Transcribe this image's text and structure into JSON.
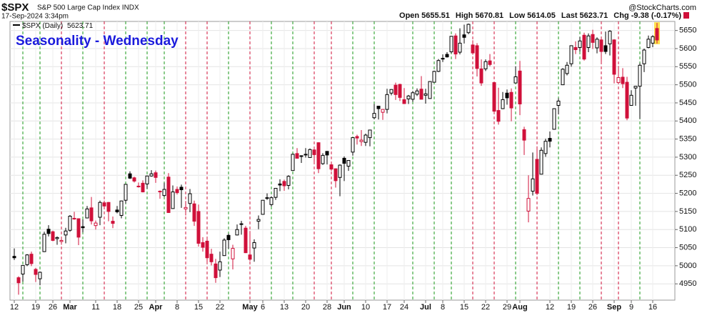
{
  "chart_data": {
    "type": "candlestick",
    "symbol": "$SPX",
    "description": "S&P 500 Large Cap Index INDX",
    "timestamp": "17-Sep-2024 3:34pm",
    "watermark": "@StockCharts.com",
    "legend_label": "$SPX (Daily)",
    "title": "Seasonality - Wednesday",
    "quote_labels": [
      "Open",
      "High",
      "Low",
      "Last",
      "Chg"
    ],
    "change": "-9.38 (-0.17%)",
    "up_color": "#000000",
    "down_color": "#d0103a",
    "wednesday_up_color": "#1a9a1a",
    "wednesday_down_color": "#d0103a",
    "grid": true,
    "ylim": [
      4905,
      5675
    ],
    "yticks": [
      4950,
      5000,
      5050,
      5100,
      5150,
      5200,
      5250,
      5300,
      5350,
      5400,
      5450,
      5500,
      5550,
      5600,
      5650
    ],
    "xticks": [
      {
        "value": 0,
        "label": "12"
      },
      {
        "value": 5,
        "label": "19"
      },
      {
        "value": 9,
        "label": "26"
      },
      {
        "value": 13,
        "label": "Mar"
      },
      {
        "value": 19,
        "label": "11"
      },
      {
        "value": 24,
        "label": "18"
      },
      {
        "value": 29,
        "label": "25"
      },
      {
        "value": 33,
        "label": "Apr"
      },
      {
        "value": 38,
        "label": "8"
      },
      {
        "value": 43,
        "label": "15"
      },
      {
        "value": 48,
        "label": "22"
      },
      {
        "value": 55,
        "label": "May"
      },
      {
        "value": 58,
        "label": "6"
      },
      {
        "value": 63,
        "label": "13"
      },
      {
        "value": 68,
        "label": "20"
      },
      {
        "value": 73,
        "label": "28"
      },
      {
        "value": 77,
        "label": "Jun"
      },
      {
        "value": 82,
        "label": "10"
      },
      {
        "value": 87,
        "label": "17"
      },
      {
        "value": 91,
        "label": "24"
      },
      {
        "value": 96,
        "label": "Jul"
      },
      {
        "value": 100,
        "label": "8"
      },
      {
        "value": 105,
        "label": "15"
      },
      {
        "value": 110,
        "label": "22"
      },
      {
        "value": 115,
        "label": "29"
      },
      {
        "value": 118,
        "label": "Aug"
      },
      {
        "value": 125,
        "label": "12"
      },
      {
        "value": 130,
        "label": "19"
      },
      {
        "value": 135,
        "label": "26"
      },
      {
        "value": 140,
        "label": "Sep"
      },
      {
        "value": 144,
        "label": "9"
      },
      {
        "value": 149,
        "label": "16"
      }
    ],
    "month_labels": [
      "Mar",
      "Apr",
      "May",
      "Jun",
      "Jul",
      "Aug",
      "Sep"
    ],
    "wednesdays": [
      2,
      6,
      11,
      16,
      21,
      26,
      31,
      35,
      40,
      45,
      50,
      55,
      60,
      65,
      70,
      74,
      79,
      84,
      93,
      98,
      102,
      107,
      112,
      117,
      122,
      127,
      132,
      137,
      141,
      146
    ],
    "ohlc": [
      [
        5026,
        5048,
        5016,
        5022
      ],
      [
        4967,
        4971,
        4920,
        4953
      ],
      [
        4977,
        5002,
        4956,
        5001
      ],
      [
        5003,
        5032,
        4999,
        5030
      ],
      [
        5032,
        5039,
        4999,
        5006
      ],
      [
        4990,
        4994,
        4955,
        4976
      ],
      [
        4964,
        4984,
        4946,
        4982
      ],
      [
        5039,
        5094,
        5038,
        5087
      ],
      [
        5101,
        5112,
        5081,
        5089
      ],
      [
        5094,
        5097,
        5068,
        5070
      ],
      [
        5075,
        5081,
        5058,
        5078
      ],
      [
        5067,
        5077,
        5058,
        5070
      ],
      [
        5085,
        5105,
        5062,
        5096
      ],
      [
        5098,
        5140,
        5094,
        5137
      ],
      [
        5131,
        5149,
        5127,
        5131
      ],
      [
        5130,
        5131,
        5057,
        5079
      ],
      [
        5108,
        5128,
        5092,
        5105
      ],
      [
        5132,
        5165,
        5132,
        5157
      ],
      [
        5160,
        5190,
        5114,
        5124
      ],
      [
        5111,
        5125,
        5100,
        5118
      ],
      [
        5134,
        5180,
        5112,
        5175
      ],
      [
        5174,
        5180,
        5161,
        5165
      ],
      [
        5175,
        5176,
        5123,
        5150
      ],
      [
        5123,
        5136,
        5104,
        5117
      ],
      [
        5154,
        5165,
        5145,
        5149
      ],
      [
        5139,
        5180,
        5131,
        5179
      ],
      [
        5181,
        5225,
        5172,
        5225
      ],
      [
        5254,
        5261,
        5240,
        5242
      ],
      [
        5243,
        5246,
        5230,
        5234
      ],
      [
        5220,
        5230,
        5216,
        5218
      ],
      [
        5228,
        5236,
        5203,
        5204
      ],
      [
        5226,
        5249,
        5213,
        5248
      ],
      [
        5248,
        5264,
        5246,
        5254
      ],
      [
        5257,
        5263,
        5229,
        5244
      ],
      [
        5204,
        5208,
        5185,
        5206
      ],
      [
        5194,
        5229,
        5190,
        5211
      ],
      [
        5245,
        5256,
        5146,
        5147
      ],
      [
        5158,
        5222,
        5158,
        5204
      ],
      [
        5211,
        5219,
        5197,
        5202
      ],
      [
        5217,
        5224,
        5160,
        5210
      ],
      [
        5157,
        5179,
        5139,
        5161
      ],
      [
        5172,
        5212,
        5148,
        5199
      ],
      [
        5171,
        5180,
        5110,
        5123
      ],
      [
        5150,
        5169,
        5053,
        5062
      ],
      [
        5064,
        5079,
        5039,
        5051
      ],
      [
        5068,
        5077,
        5008,
        5022
      ],
      [
        5032,
        5047,
        5001,
        5011
      ],
      [
        5005,
        5019,
        4953,
        4967
      ],
      [
        4988,
        5039,
        4969,
        5011
      ],
      [
        5028,
        5076,
        5028,
        5071
      ],
      [
        5084,
        5089,
        5047,
        5072
      ],
      [
        5019,
        5058,
        4990,
        5048
      ],
      [
        5085,
        5114,
        5084,
        5100
      ],
      [
        5114,
        5124,
        5086,
        5116
      ],
      [
        5104,
        5110,
        5035,
        5036
      ],
      [
        5030,
        5096,
        5013,
        5018
      ],
      [
        5049,
        5073,
        5011,
        5064
      ],
      [
        5123,
        5139,
        5101,
        5128
      ],
      [
        5142,
        5181,
        5142,
        5181
      ],
      [
        5188,
        5200,
        5182,
        5188
      ],
      [
        5169,
        5192,
        5164,
        5188
      ],
      [
        5189,
        5215,
        5182,
        5214
      ],
      [
        5226,
        5239,
        5206,
        5223
      ],
      [
        5233,
        5238,
        5207,
        5221
      ],
      [
        5222,
        5250,
        5211,
        5247
      ],
      [
        5263,
        5310,
        5263,
        5308
      ],
      [
        5310,
        5325,
        5296,
        5297
      ],
      [
        5304,
        5305,
        5284,
        5303
      ],
      [
        5306,
        5325,
        5299,
        5308
      ],
      [
        5299,
        5324,
        5298,
        5321
      ],
      [
        5320,
        5327,
        5287,
        5307
      ],
      [
        5340,
        5341,
        5256,
        5268
      ],
      [
        5282,
        5311,
        5279,
        5305
      ],
      [
        5316,
        5316,
        5280,
        5306
      ],
      [
        5279,
        5282,
        5262,
        5267
      ],
      [
        5268,
        5269,
        5216,
        5235
      ],
      [
        5244,
        5280,
        5192,
        5278
      ],
      [
        5297,
        5302,
        5234,
        5283
      ],
      [
        5275,
        5292,
        5262,
        5291
      ],
      [
        5314,
        5354,
        5304,
        5354
      ],
      [
        5357,
        5362,
        5335,
        5353
      ],
      [
        5343,
        5375,
        5331,
        5347
      ],
      [
        5341,
        5365,
        5331,
        5361
      ],
      [
        5354,
        5376,
        5330,
        5375
      ],
      [
        5409,
        5447,
        5405,
        5421
      ],
      [
        5441,
        5442,
        5404,
        5434
      ],
      [
        5424,
        5432,
        5403,
        5432
      ],
      [
        5432,
        5489,
        5421,
        5473
      ],
      [
        5477,
        5488,
        5471,
        5487
      ],
      [
        5499,
        5506,
        5458,
        5473
      ],
      [
        5501,
        5503,
        5455,
        5465
      ],
      [
        5459,
        5491,
        5447,
        5448
      ],
      [
        5461,
        5472,
        5447,
        5469
      ],
      [
        5460,
        5483,
        5453,
        5478
      ],
      [
        5474,
        5490,
        5469,
        5483
      ],
      [
        5488,
        5524,
        5460,
        5460
      ],
      [
        5471,
        5489,
        5448,
        5475
      ],
      [
        5462,
        5510,
        5462,
        5509
      ],
      [
        5507,
        5539,
        5507,
        5537
      ],
      [
        5537,
        5571,
        5535,
        5567
      ],
      [
        5572,
        5584,
        5563,
        5573
      ],
      [
        5584,
        5590,
        5575,
        5577
      ],
      [
        5591,
        5635,
        5587,
        5634
      ],
      [
        5635,
        5642,
        5571,
        5585
      ],
      [
        5590,
        5656,
        5584,
        5615
      ],
      [
        5638,
        5666,
        5614,
        5631
      ],
      [
        5644,
        5669,
        5640,
        5667
      ],
      [
        5610,
        5623,
        5583,
        5588
      ],
      [
        5608,
        5615,
        5523,
        5545
      ],
      [
        5544,
        5570,
        5497,
        5505
      ],
      [
        5544,
        5570,
        5538,
        5564
      ],
      [
        5566,
        5585,
        5551,
        5556
      ],
      [
        5506,
        5509,
        5424,
        5427
      ],
      [
        5429,
        5492,
        5390,
        5399
      ],
      [
        5434,
        5480,
        5433,
        5459
      ],
      [
        5477,
        5487,
        5445,
        5464
      ],
      [
        5479,
        5490,
        5399,
        5436
      ],
      [
        5505,
        5551,
        5505,
        5522
      ],
      [
        5538,
        5566,
        5416,
        5447
      ],
      [
        5376,
        5384,
        5306,
        5347
      ],
      [
        5151,
        5250,
        5120,
        5186
      ],
      [
        5206,
        5313,
        5194,
        5240
      ],
      [
        5294,
        5330,
        5195,
        5200
      ],
      [
        5253,
        5327,
        5253,
        5319
      ],
      [
        5310,
        5351,
        5301,
        5344
      ],
      [
        5352,
        5371,
        5327,
        5344
      ],
      [
        5377,
        5435,
        5377,
        5434
      ],
      [
        5443,
        5463,
        5418,
        5455
      ],
      [
        5500,
        5546,
        5500,
        5543
      ],
      [
        5531,
        5563,
        5526,
        5554
      ],
      [
        5558,
        5608,
        5550,
        5608
      ],
      [
        5603,
        5620,
        5585,
        5597
      ],
      [
        5603,
        5632,
        5592,
        5621
      ],
      [
        5637,
        5644,
        5567,
        5571
      ],
      [
        5603,
        5642,
        5590,
        5635
      ],
      [
        5639,
        5652,
        5599,
        5617
      ],
      [
        5602,
        5631,
        5587,
        5626
      ],
      [
        5624,
        5628,
        5561,
        5592
      ],
      [
        5608,
        5647,
        5585,
        5592
      ],
      [
        5613,
        5651,
        5581,
        5648
      ],
      [
        5624,
        5626,
        5504,
        5529
      ],
      [
        5506,
        5552,
        5503,
        5520
      ],
      [
        5521,
        5546,
        5491,
        5503
      ],
      [
        5507,
        5522,
        5402,
        5408
      ],
      [
        5443,
        5485,
        5442,
        5471
      ],
      [
        5491,
        5497,
        5442,
        5496
      ],
      [
        5496,
        5560,
        5406,
        5554
      ],
      [
        5558,
        5600,
        5535,
        5596
      ],
      [
        5603,
        5636,
        5601,
        5626
      ],
      [
        5615,
        5637,
        5604,
        5633
      ],
      [
        5655.51,
        5670.81,
        5614.05,
        5623.71
      ]
    ]
  }
}
